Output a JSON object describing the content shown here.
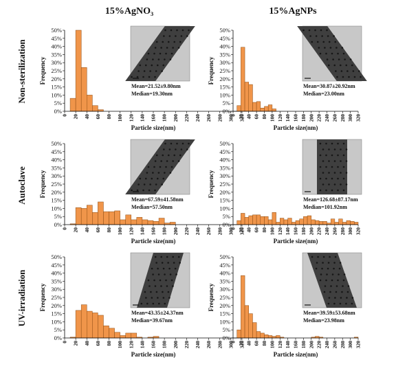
{
  "figure": {
    "column_titles": [
      "15%AgNO₃",
      "15%AgNPs"
    ],
    "row_titles": [
      "Non-sterilization",
      "Autoclave",
      "UV-irradiation"
    ]
  },
  "style": {
    "bar_fill": "#f0954a",
    "bar_stroke": "#8a4a12",
    "axis_color": "#000000"
  },
  "chart_data": [
    {
      "type": "bar",
      "panel": "non-sterilization-agno3",
      "xlabel": "Particle size(nm)",
      "ylabel": "Frequency",
      "x_ticks": [
        0,
        20,
        40,
        60,
        80,
        100,
        120,
        140,
        160,
        180,
        200,
        220,
        240,
        260,
        280,
        300,
        320
      ],
      "y_ticks": [
        "0%",
        "5%",
        "10%",
        "15%",
        "20%",
        "25%",
        "30%",
        "35%",
        "40%",
        "45%",
        "50%"
      ],
      "ylim": [
        0,
        50
      ],
      "xlim": [
        0,
        320
      ],
      "bin_width": 10,
      "bin_starts": [
        10,
        20,
        30,
        40,
        50,
        60
      ],
      "values": [
        8,
        50,
        27,
        10,
        3.5,
        1
      ],
      "mean": "Mean=21.52±9.80nm",
      "median": "Median=19.30nm"
    },
    {
      "type": "bar",
      "panel": "non-sterilization-agnps",
      "xlabel": "Particle size(nm)",
      "ylabel": "Frequency",
      "x_ticks": [
        0,
        20,
        40,
        60,
        80,
        100,
        120,
        140,
        160,
        180,
        200,
        220,
        240,
        260,
        280,
        300,
        320
      ],
      "y_ticks": [
        "0%",
        "5%",
        "10%",
        "15%",
        "20%",
        "25%",
        "30%",
        "35%",
        "40%",
        "45%",
        "50%"
      ],
      "ylim": [
        0,
        50
      ],
      "xlim": [
        0,
        320
      ],
      "bin_width": 10,
      "bin_starts": [
        10,
        20,
        30,
        40,
        50,
        60,
        70,
        80,
        90,
        100
      ],
      "values": [
        3.5,
        39.5,
        18,
        16.5,
        5.5,
        6,
        2,
        3,
        4,
        1.5
      ],
      "mean": "Mean=30.87±20.92nm",
      "median": "Median=23.00nm"
    },
    {
      "type": "bar",
      "panel": "autoclave-agno3",
      "xlabel": "Particle size(nm)",
      "ylabel": "Frequency",
      "x_ticks": [
        0,
        20,
        40,
        60,
        80,
        100,
        120,
        140,
        160,
        180,
        200,
        220,
        240,
        260,
        280,
        300,
        320
      ],
      "y_ticks": [
        "0%",
        "5%",
        "10%",
        "15%",
        "20%",
        "25%",
        "30%",
        "35%",
        "40%",
        "45%",
        "50%"
      ],
      "ylim": [
        0,
        50
      ],
      "xlim": [
        0,
        320
      ],
      "bin_width": 10,
      "bin_starts": [
        10,
        20,
        30,
        40,
        50,
        60,
        70,
        80,
        90,
        100,
        110,
        120,
        130,
        140,
        150,
        160,
        170,
        180,
        190
      ],
      "values": [
        0.5,
        10.5,
        10,
        12,
        7.5,
        14,
        8,
        8,
        8.5,
        3,
        6,
        3,
        4.5,
        3,
        2.5,
        2,
        4,
        1,
        1.5
      ],
      "mean": "Mean=67.59±41.58nm",
      "median": "Median=57.50nm"
    },
    {
      "type": "bar",
      "panel": "autoclave-agnps",
      "xlabel": "Particle size(nm)",
      "ylabel": "Frequency",
      "x_ticks": [
        0,
        20,
        40,
        60,
        80,
        100,
        120,
        140,
        160,
        180,
        200,
        220,
        240,
        260,
        280,
        300,
        320
      ],
      "y_ticks": [
        "0%",
        "5%",
        "10%",
        "15%",
        "20%",
        "25%",
        "30%",
        "35%",
        "40%",
        "45%",
        "50%"
      ],
      "ylim": [
        0,
        50
      ],
      "xlim": [
        0,
        320
      ],
      "bin_width": 10,
      "bin_starts": [
        10,
        20,
        30,
        40,
        50,
        60,
        70,
        80,
        90,
        100,
        110,
        120,
        130,
        140,
        150,
        160,
        170,
        180,
        190,
        200,
        210,
        220,
        230,
        240,
        250,
        260,
        270,
        280,
        290,
        300,
        310
      ],
      "values": [
        2.5,
        7,
        4.5,
        5.5,
        6,
        6,
        5,
        5,
        3,
        7.5,
        1.5,
        4,
        3,
        4,
        1.5,
        2.5,
        3.5,
        5,
        5.5,
        3,
        2.5,
        2,
        2,
        1,
        3.5,
        1.5,
        3.5,
        1.5,
        2.5,
        2,
        1.5
      ],
      "mean": "Mean=126.68±87.17nm",
      "median": "Median=101.92nm"
    },
    {
      "type": "bar",
      "panel": "uv-irradiation-agno3",
      "xlabel": "Particle size(nm)",
      "ylabel": "Frequency",
      "x_ticks": [
        0,
        20,
        40,
        60,
        80,
        100,
        120,
        140,
        160,
        180,
        200,
        220,
        240,
        260,
        280,
        300,
        320
      ],
      "y_ticks": [
        "0%",
        "5%",
        "10%",
        "15%",
        "20%",
        "25%",
        "30%",
        "35%",
        "40%",
        "45%",
        "50%"
      ],
      "ylim": [
        0,
        50
      ],
      "xlim": [
        0,
        320
      ],
      "bin_width": 10,
      "bin_starts": [
        10,
        20,
        30,
        40,
        50,
        60,
        70,
        80,
        90,
        100,
        110,
        120,
        130,
        140,
        150,
        160
      ],
      "values": [
        0.5,
        17,
        20.5,
        16.5,
        15.5,
        14,
        7.5,
        6,
        3.5,
        1.5,
        3,
        3,
        0.5,
        0,
        0.5,
        1
      ],
      "mean": "Mean=43.35±24.37nm",
      "median": "Median=39.67nm"
    },
    {
      "type": "bar",
      "panel": "uv-irradiation-agnps",
      "xlabel": "Particle size(nm)",
      "ylabel": "Frequency",
      "x_ticks": [
        0,
        20,
        40,
        60,
        80,
        100,
        120,
        140,
        160,
        180,
        200,
        220,
        240,
        260,
        280,
        300,
        320
      ],
      "y_ticks": [
        "0%",
        "5%",
        "10%",
        "15%",
        "20%",
        "25%",
        "30%",
        "35%",
        "40%",
        "45%",
        "50%"
      ],
      "ylim": [
        0,
        50
      ],
      "xlim": [
        0,
        320
      ],
      "bin_width": 10,
      "bin_starts": [
        10,
        20,
        30,
        40,
        50,
        60,
        70,
        80,
        90,
        100,
        110,
        120,
        200,
        210,
        220,
        310
      ],
      "values": [
        5,
        38.5,
        20,
        15,
        9.5,
        4,
        3,
        2,
        1.5,
        1,
        1.5,
        0.5,
        0.5,
        1,
        0.5,
        0.5
      ],
      "mean": "Mean=39.59±53.68nm",
      "median": "Median=23.98nm"
    }
  ]
}
